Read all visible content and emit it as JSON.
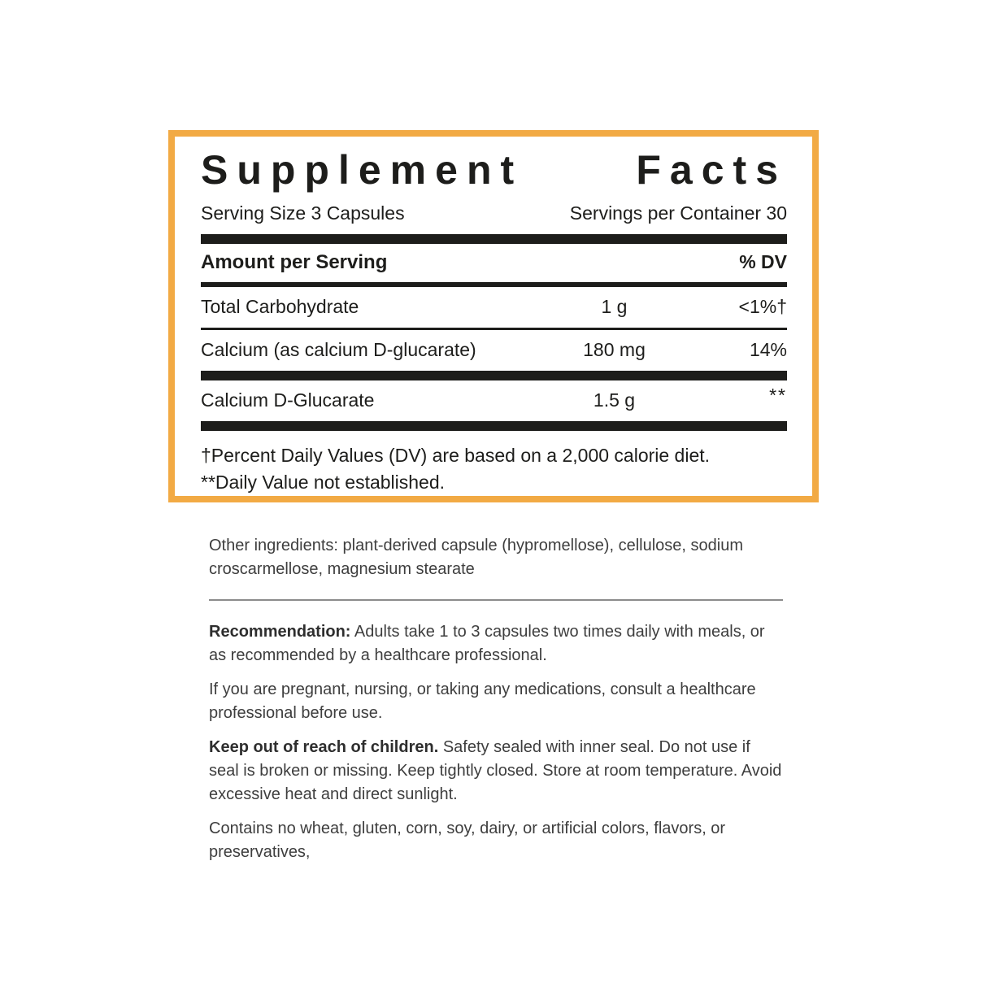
{
  "colors": {
    "panel_border": "#F2AA44",
    "panel_text": "#1D1D1B",
    "body_text": "#3E3E3E"
  },
  "panel": {
    "title": "Supplement Facts",
    "serving_size": "Serving Size 3 Capsules",
    "servings_per_container": "Servings per Container 30",
    "columns": {
      "amount_header": "Amount per Serving",
      "dv_header": "% DV"
    },
    "rows": [
      {
        "name": "Total Carbohydrate",
        "amount": "1 g",
        "dv": "<1%†"
      },
      {
        "name": "Calcium (as calcium D-glucarate)",
        "amount": "180 mg",
        "dv": "14%"
      },
      {
        "name": "Calcium D-Glucarate",
        "amount": "1.5 g",
        "dv": "**"
      }
    ],
    "footnotes": [
      "†Percent Daily Values (DV) are based on a 2,000 calorie diet.",
      "**Daily Value not established."
    ]
  },
  "details": {
    "other_ingredients": "Other ingredients: plant-derived capsule (hypromellose), cellulose, sodium croscarmellose, magnesium stearate",
    "recommendation_label": "Recommendation:",
    "recommendation_text": " Adults take 1 to 3 capsules two times daily with meals, or as recommended by a healthcare professional.",
    "pregnancy_notice": "If you are pregnant, nursing, or taking any medications, consult a healthcare professional before use.",
    "children_label": "Keep out of reach of children.",
    "children_text": " Safety sealed with inner seal. Do not use if seal is broken or missing. Keep tightly closed. Store at room temperature. Avoid excessive heat and direct sunlight.",
    "contains_notice": "Contains no wheat, gluten, corn, soy, dairy, or artificial colors, flavors, or preservatives,"
  }
}
